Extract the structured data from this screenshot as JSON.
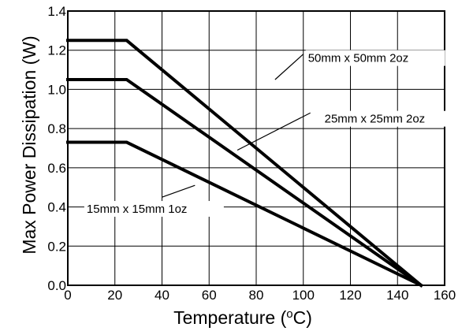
{
  "chart_data": {
    "type": "line",
    "title": "",
    "xlabel": {
      "prefix": "Temperature (",
      "superscript": "o",
      "suffix": "C)"
    },
    "ylabel": "Max Power Dissipation (W)",
    "xlim": [
      0,
      160
    ],
    "ylim": [
      0.0,
      1.4
    ],
    "grid": true,
    "x_ticks": [
      0,
      20,
      40,
      60,
      80,
      100,
      120,
      140,
      160
    ],
    "x_tick_labels": [
      "0",
      "20",
      "40",
      "60",
      "80",
      "100",
      "120",
      "140",
      "160"
    ],
    "y_ticks": [
      0.0,
      0.2,
      0.4,
      0.6,
      0.8,
      1.0,
      1.2,
      1.4
    ],
    "y_tick_labels": [
      "0.0",
      "0.2",
      "0.4",
      "0.6",
      "0.8",
      "1.0",
      "1.2",
      "1.4"
    ],
    "series": [
      {
        "name": "50mm x 50mm 2oz",
        "x": [
          0,
          25,
          150
        ],
        "y": [
          1.25,
          1.25,
          0.0
        ]
      },
      {
        "name": "25mm x 25mm 2oz",
        "x": [
          0,
          25,
          150
        ],
        "y": [
          1.05,
          1.05,
          0.0
        ]
      },
      {
        "name": "15mm x 15mm 1oz",
        "x": [
          0,
          25,
          150
        ],
        "y": [
          0.73,
          0.73,
          0.0
        ]
      }
    ],
    "annotations": [
      {
        "text": "50mm x 50mm 2oz",
        "x": 102,
        "y": 1.14
      },
      {
        "text": "25mm x 25mm 2oz",
        "x": 109,
        "y": 0.83
      },
      {
        "text": "15mm x 15mm 1oz",
        "x": 8,
        "y": 0.37
      }
    ]
  }
}
